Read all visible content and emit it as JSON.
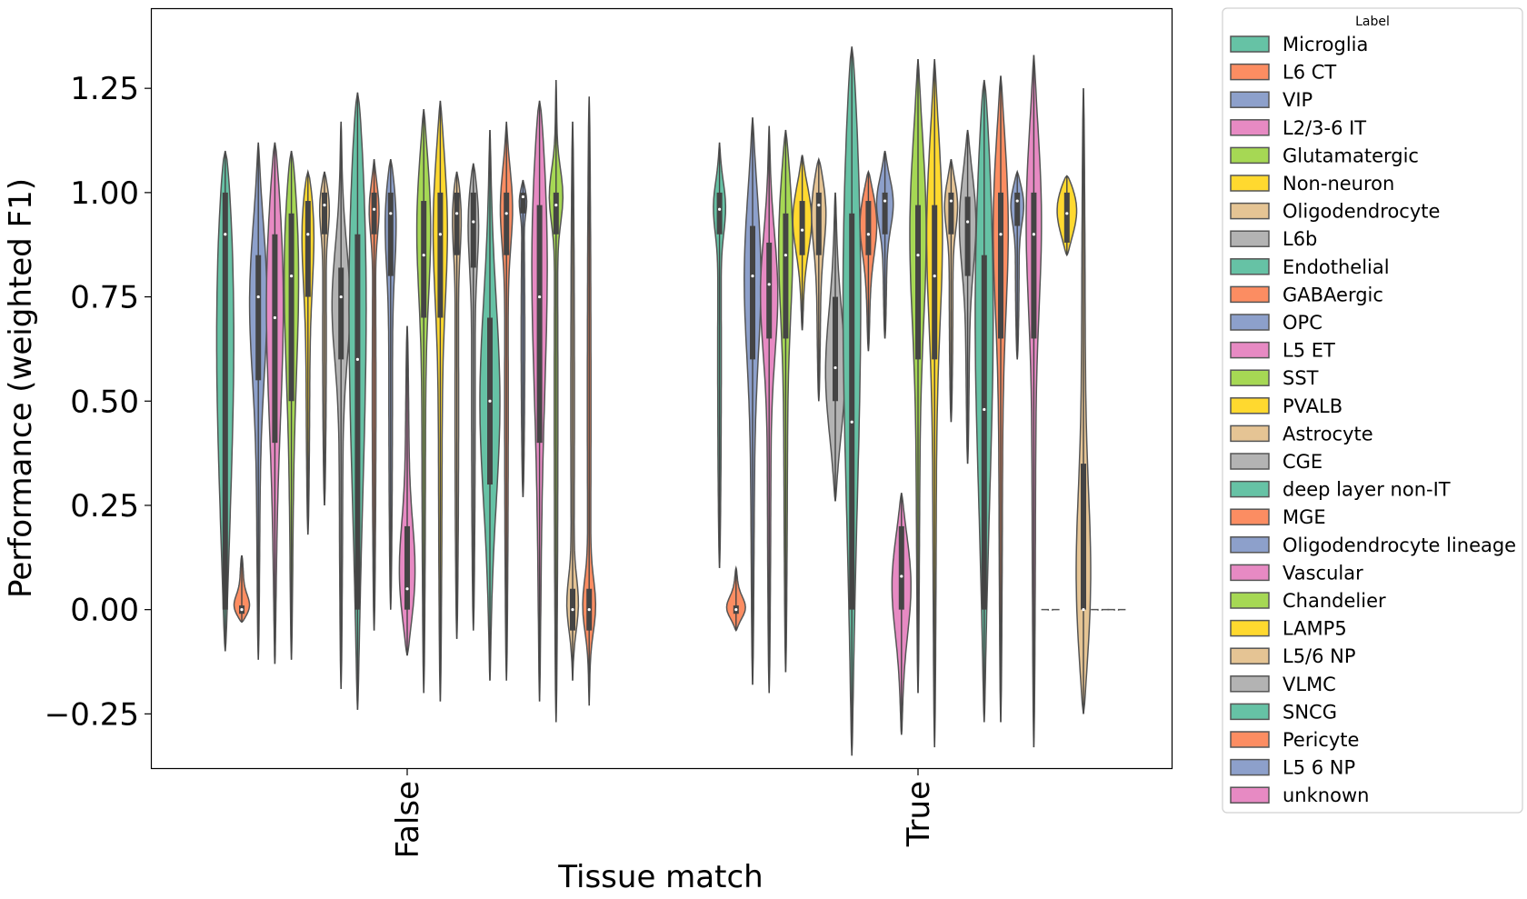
{
  "chart_data": {
    "type": "violin",
    "xlabel": "Tissue match",
    "ylabel": "Performance (weighted F1)",
    "categories": [
      "False",
      "True"
    ],
    "ylim": [
      -0.38,
      1.44
    ],
    "yticks": [
      -0.25,
      0.0,
      0.25,
      0.5,
      0.75,
      1.0,
      1.25
    ],
    "ytick_labels": [
      "−0.25",
      "0.00",
      "0.25",
      "0.50",
      "0.75",
      "1.00",
      "1.25"
    ],
    "grid": false,
    "legend": {
      "title": "Label",
      "placement": "outside-right",
      "entries": [
        {
          "name": "Microglia",
          "color": "#66c2a5"
        },
        {
          "name": "L6 CT",
          "color": "#fc8d62"
        },
        {
          "name": "VIP",
          "color": "#8da0cb"
        },
        {
          "name": "L2/3-6 IT",
          "color": "#e78ac3"
        },
        {
          "name": "Glutamatergic",
          "color": "#a6d854"
        },
        {
          "name": "Non-neuron",
          "color": "#ffd92f"
        },
        {
          "name": "Oligodendrocyte",
          "color": "#e5c494"
        },
        {
          "name": "L6b",
          "color": "#b3b3b3"
        },
        {
          "name": "Endothelial",
          "color": "#66c2a5"
        },
        {
          "name": "GABAergic",
          "color": "#fc8d62"
        },
        {
          "name": "OPC",
          "color": "#8da0cb"
        },
        {
          "name": "L5 ET",
          "color": "#e78ac3"
        },
        {
          "name": "SST",
          "color": "#a6d854"
        },
        {
          "name": "PVALB",
          "color": "#ffd92f"
        },
        {
          "name": "Astrocyte",
          "color": "#e5c494"
        },
        {
          "name": "CGE",
          "color": "#b3b3b3"
        },
        {
          "name": "deep layer non-IT",
          "color": "#66c2a5"
        },
        {
          "name": "MGE",
          "color": "#fc8d62"
        },
        {
          "name": "Oligodendrocyte lineage",
          "color": "#8da0cb"
        },
        {
          "name": "Vascular",
          "color": "#e78ac3"
        },
        {
          "name": "Chandelier",
          "color": "#a6d854"
        },
        {
          "name": "LAMP5",
          "color": "#ffd92f"
        },
        {
          "name": "L5/6 NP",
          "color": "#e5c494"
        },
        {
          "name": "VLMC",
          "color": "#b3b3b3"
        },
        {
          "name": "SNCG",
          "color": "#66c2a5"
        },
        {
          "name": "Pericyte",
          "color": "#fc8d62"
        },
        {
          "name": "L5 6 NP",
          "color": "#8da0cb"
        },
        {
          "name": "unknown",
          "color": "#e78ac3"
        }
      ]
    },
    "series": [
      {
        "group": "False",
        "violins": [
          {
            "label": "Microglia",
            "min": -0.1,
            "q1": 0.0,
            "median": 0.9,
            "q3": 1.0,
            "max": 1.1,
            "mode": 0.98
          },
          {
            "label": "L6 CT",
            "min": -0.03,
            "q1": -0.01,
            "median": 0.0,
            "q3": 0.01,
            "max": 0.13,
            "mode": 0.0
          },
          {
            "label": "VIP",
            "min": -0.12,
            "q1": 0.55,
            "median": 0.75,
            "q3": 0.85,
            "max": 1.12,
            "mode": 0.78
          },
          {
            "label": "L2/3-6 IT",
            "min": -0.13,
            "q1": 0.4,
            "median": 0.7,
            "q3": 0.9,
            "max": 1.12,
            "mode": 0.85
          },
          {
            "label": "Glutamatergic",
            "min": -0.12,
            "q1": 0.5,
            "median": 0.8,
            "q3": 0.95,
            "max": 1.1,
            "mode": 0.95
          },
          {
            "label": "Non-neuron",
            "min": 0.18,
            "q1": 0.75,
            "median": 0.9,
            "q3": 0.98,
            "max": 1.05,
            "mode": 0.98
          },
          {
            "label": "Oligodendrocyte",
            "min": 0.25,
            "q1": 0.9,
            "median": 0.97,
            "q3": 1.0,
            "max": 1.05,
            "mode": 0.99
          },
          {
            "label": "L6b",
            "min": -0.19,
            "q1": 0.6,
            "median": 0.75,
            "q3": 0.82,
            "max": 1.17,
            "mode": 0.75
          },
          {
            "label": "Endothelial",
            "min": -0.24,
            "q1": 0.0,
            "median": 0.6,
            "q3": 0.9,
            "max": 1.24,
            "mode": 0.98
          },
          {
            "label": "GABAergic",
            "min": -0.05,
            "q1": 0.9,
            "median": 0.96,
            "q3": 1.0,
            "max": 1.08,
            "mode": 0.98
          },
          {
            "label": "OPC",
            "min": -0.0,
            "q1": 0.8,
            "median": 0.95,
            "q3": 1.0,
            "max": 1.08,
            "mode": 0.99
          },
          {
            "label": "L5 ET",
            "min": -0.11,
            "q1": 0.0,
            "median": 0.05,
            "q3": 0.2,
            "max": 0.68,
            "mode": 0.05
          },
          {
            "label": "SST",
            "min": -0.2,
            "q1": 0.7,
            "median": 0.85,
            "q3": 0.98,
            "max": 1.2,
            "mode": 0.98
          },
          {
            "label": "PVALB",
            "min": -0.22,
            "q1": 0.7,
            "median": 0.9,
            "q3": 1.0,
            "max": 1.22,
            "mode": 0.98
          },
          {
            "label": "Astrocyte",
            "min": -0.07,
            "q1": 0.85,
            "median": 0.95,
            "q3": 1.0,
            "max": 1.05,
            "mode": 0.99
          },
          {
            "label": "CGE",
            "min": -0.05,
            "q1": 0.82,
            "median": 0.93,
            "q3": 1.0,
            "max": 1.07,
            "mode": 0.98
          },
          {
            "label": "deep layer non-IT",
            "min": -0.17,
            "q1": 0.3,
            "median": 0.5,
            "q3": 0.7,
            "max": 1.15,
            "mode": 0.5
          },
          {
            "label": "MGE",
            "min": -0.17,
            "q1": 0.85,
            "median": 0.95,
            "q3": 1.0,
            "max": 1.17,
            "mode": 0.99
          },
          {
            "label": "Oligodendrocyte lineage",
            "min": 0.27,
            "q1": 0.95,
            "median": 0.99,
            "q3": 1.0,
            "max": 1.03,
            "mode": 0.99
          },
          {
            "label": "Vascular",
            "min": -0.22,
            "q1": 0.4,
            "median": 0.75,
            "q3": 0.97,
            "max": 1.22,
            "mode": 1.0
          },
          {
            "label": "Chandelier",
            "min": -0.27,
            "q1": 0.9,
            "median": 0.97,
            "q3": 1.0,
            "max": 1.27,
            "mode": 1.0
          },
          {
            "label": "L5/6 NP",
            "min": -0.17,
            "q1": -0.05,
            "median": 0.0,
            "q3": 0.05,
            "max": 1.17,
            "mode": 0.0
          },
          {
            "label": "Pericyte",
            "min": -0.23,
            "q1": -0.05,
            "median": 0.0,
            "q3": 0.05,
            "max": 1.23,
            "mode": 0.0
          }
        ]
      },
      {
        "group": "True",
        "violins": [
          {
            "label": "Microglia",
            "min": 0.1,
            "q1": 0.9,
            "median": 0.96,
            "q3": 1.0,
            "max": 1.12,
            "mode": 0.98
          },
          {
            "label": "L6 CT",
            "min": -0.05,
            "q1": -0.01,
            "median": 0.0,
            "q3": 0.01,
            "max": 0.1,
            "mode": 0.0
          },
          {
            "label": "VIP",
            "min": -0.18,
            "q1": 0.6,
            "median": 0.8,
            "q3": 0.92,
            "max": 1.18,
            "mode": 0.85
          },
          {
            "label": "L2/3-6 IT",
            "min": -0.2,
            "q1": 0.65,
            "median": 0.78,
            "q3": 0.88,
            "max": 1.16,
            "mode": 0.78
          },
          {
            "label": "Glutamatergic",
            "min": -0.15,
            "q1": 0.65,
            "median": 0.85,
            "q3": 0.95,
            "max": 1.15,
            "mode": 0.95
          },
          {
            "label": "Non-neuron",
            "min": 0.67,
            "q1": 0.85,
            "median": 0.91,
            "q3": 0.98,
            "max": 1.09,
            "mode": 0.95
          },
          {
            "label": "Oligodendrocyte",
            "min": 0.5,
            "q1": 0.85,
            "median": 0.97,
            "q3": 1.0,
            "max": 1.08,
            "mode": 0.99
          },
          {
            "label": "L6b",
            "min": 0.26,
            "q1": 0.5,
            "median": 0.58,
            "q3": 0.75,
            "max": 1.0,
            "mode": 0.55
          },
          {
            "label": "Endothelial",
            "min": -0.35,
            "q1": 0.0,
            "median": 0.45,
            "q3": 0.95,
            "max": 1.35,
            "mode": 0.98
          },
          {
            "label": "GABAergic",
            "min": 0.62,
            "q1": 0.85,
            "median": 0.9,
            "q3": 0.98,
            "max": 1.05,
            "mode": 0.95
          },
          {
            "label": "OPC",
            "min": 0.65,
            "q1": 0.9,
            "median": 0.98,
            "q3": 1.0,
            "max": 1.1,
            "mode": 0.99
          },
          {
            "label": "L5 ET",
            "min": -0.3,
            "q1": 0.0,
            "median": 0.08,
            "q3": 0.2,
            "max": 0.28,
            "mode": 0.08
          },
          {
            "label": "SST",
            "min": -0.2,
            "q1": 0.6,
            "median": 0.85,
            "q3": 0.97,
            "max": 1.32,
            "mode": 0.97
          },
          {
            "label": "PVALB",
            "min": -0.33,
            "q1": 0.6,
            "median": 0.8,
            "q3": 0.97,
            "max": 1.32,
            "mode": 0.97
          },
          {
            "label": "Astrocyte",
            "min": 0.45,
            "q1": 0.9,
            "median": 0.98,
            "q3": 1.0,
            "max": 1.08,
            "mode": 0.99
          },
          {
            "label": "CGE",
            "min": 0.35,
            "q1": 0.8,
            "median": 0.93,
            "q3": 0.99,
            "max": 1.15,
            "mode": 0.96
          },
          {
            "label": "deep layer non-IT",
            "min": -0.27,
            "q1": 0.0,
            "median": 0.48,
            "q3": 0.85,
            "max": 1.27,
            "mode": 0.9
          },
          {
            "label": "MGE",
            "min": -0.27,
            "q1": 0.65,
            "median": 0.9,
            "q3": 1.0,
            "max": 1.28,
            "mode": 0.99
          },
          {
            "label": "Oligodendrocyte lineage",
            "min": 0.6,
            "q1": 0.92,
            "median": 0.98,
            "q3": 1.0,
            "max": 1.05,
            "mode": 0.99
          },
          {
            "label": "Vascular",
            "min": -0.33,
            "q1": 0.65,
            "median": 0.9,
            "q3": 1.0,
            "max": 1.33,
            "mode": 1.0
          },
          {
            "label": "Chandelier",
            "min": 0.0,
            "q1": 0.0,
            "median": 0.0,
            "q3": 0.0,
            "max": 0.0,
            "mode": 0.0
          },
          {
            "label": "LAMP5",
            "min": 0.85,
            "q1": 0.88,
            "median": 0.95,
            "q3": 1.0,
            "max": 1.04,
            "mode": 0.97
          },
          {
            "label": "L5/6 NP",
            "min": -0.25,
            "q1": 0.0,
            "median": 0.0,
            "q3": 0.35,
            "max": 1.25,
            "mode": 0.0
          },
          {
            "label": "VLMC",
            "min": 0.0,
            "q1": 0.0,
            "median": 0.0,
            "q3": 0.0,
            "max": 0.0,
            "mode": 0.0
          },
          {
            "label": "SNCG",
            "min": 0.0,
            "q1": 0.0,
            "median": 0.0,
            "q3": 0.0,
            "max": 0.0,
            "mode": 0.0
          }
        ]
      }
    ]
  }
}
